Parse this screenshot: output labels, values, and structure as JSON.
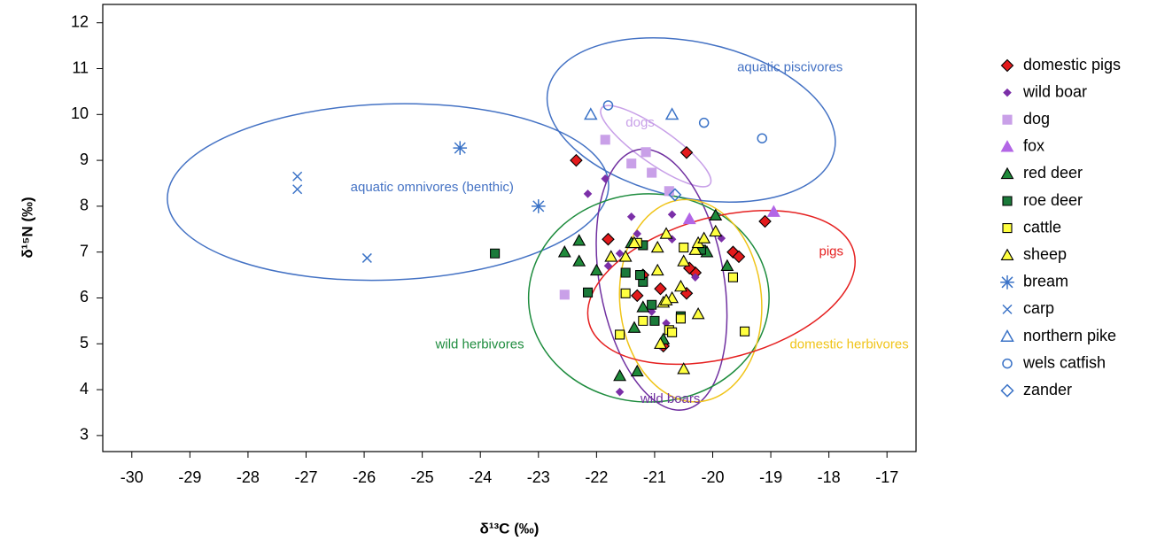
{
  "chart_data": {
    "type": "scatter",
    "x_label": "δ¹³C (‰)",
    "y_label": "δ¹⁵N (‰)",
    "xlim": [
      -30.5,
      -16.5
    ],
    "ylim": [
      2.65,
      12.4
    ],
    "xticks": [
      -30,
      -29,
      -28,
      -27,
      -26,
      -25,
      -24,
      -23,
      -22,
      -21,
      -20,
      -19,
      -18,
      -17
    ],
    "yticks": [
      3,
      4,
      5,
      6,
      7,
      8,
      9,
      10,
      11,
      12
    ],
    "series": [
      {
        "name": "domestic pigs",
        "color": "#e31a1c",
        "marker": "diamond",
        "outline": true,
        "x": [
          -22.35,
          -20.45,
          -21.8,
          -21.2,
          -21.3,
          -20.9,
          -20.85,
          -20.45,
          -20.3,
          -20.4,
          -19.65,
          -19.55,
          -19.1
        ],
        "y": [
          9.0,
          9.17,
          7.28,
          6.5,
          6.05,
          6.2,
          4.95,
          6.1,
          6.55,
          6.65,
          7.0,
          6.9,
          7.67
        ]
      },
      {
        "name": "wild boar",
        "color": "#7b2fa8",
        "marker": "small-diamond",
        "outline": false,
        "x": [
          -21.85,
          -22.15,
          -21.4,
          -20.7,
          -21.6,
          -21.3,
          -20.7,
          -21.8,
          -20.3,
          -20.8,
          -21.05,
          -19.85,
          -21.6,
          -20.9
        ],
        "y": [
          8.6,
          8.27,
          7.77,
          7.82,
          6.97,
          7.4,
          7.28,
          6.7,
          6.45,
          5.45,
          5.7,
          7.3,
          3.95,
          4.95
        ]
      },
      {
        "name": "dog",
        "color": "#c9a0e8",
        "marker": "square",
        "outline": false,
        "x": [
          -21.85,
          -21.4,
          -21.15,
          -21.05,
          -20.75,
          -22.55
        ],
        "y": [
          9.45,
          8.93,
          9.18,
          8.73,
          8.33,
          6.07
        ]
      },
      {
        "name": "fox",
        "color": "#b366e6",
        "marker": "triangle",
        "outline": false,
        "x": [
          -20.4,
          -18.95
        ],
        "y": [
          7.72,
          7.88
        ]
      },
      {
        "name": "red deer",
        "color": "#1f8a3a",
        "marker": "triangle",
        "outline": true,
        "x": [
          -22.55,
          -22.3,
          -22.3,
          -22.0,
          -21.4,
          -21.2,
          -21.35,
          -21.3,
          -21.6,
          -20.1,
          -19.95,
          -19.75,
          -20.85
        ],
        "y": [
          7.0,
          7.25,
          6.8,
          6.6,
          7.2,
          5.8,
          5.35,
          4.4,
          4.3,
          7.0,
          7.8,
          6.7,
          5.1
        ]
      },
      {
        "name": "roe deer",
        "color": "#1b7a3a",
        "marker": "square",
        "outline": true,
        "x": [
          -23.75,
          -22.15,
          -21.5,
          -21.2,
          -21.2,
          -21.0,
          -20.55,
          -20.2,
          -21.05,
          -21.25
        ],
        "y": [
          6.97,
          6.12,
          6.55,
          6.35,
          7.15,
          5.5,
          5.6,
          7.05,
          5.85,
          6.5
        ]
      },
      {
        "name": "cattle",
        "color": "#ffff40",
        "marker": "square",
        "outline": true,
        "x": [
          -21.5,
          -21.6,
          -21.2,
          -20.75,
          -20.7,
          -20.55,
          -20.5,
          -19.65,
          -19.45,
          -21.3
        ],
        "y": [
          6.1,
          5.2,
          5.5,
          5.3,
          5.25,
          5.55,
          7.1,
          6.45,
          5.27,
          7.2
        ]
      },
      {
        "name": "sheep",
        "color": "#ffff40",
        "marker": "triangle",
        "outline": true,
        "x": [
          -21.75,
          -21.5,
          -21.35,
          -20.95,
          -20.8,
          -20.95,
          -20.85,
          -20.7,
          -20.55,
          -20.3,
          -20.25,
          -20.15,
          -19.95,
          -20.5,
          -20.25,
          -20.9,
          -20.5,
          -20.8
        ],
        "y": [
          6.9,
          6.9,
          7.2,
          7.1,
          7.4,
          6.6,
          5.9,
          6.0,
          6.25,
          7.05,
          7.2,
          7.3,
          7.45,
          6.8,
          5.65,
          5.0,
          4.45,
          5.95
        ]
      },
      {
        "name": "bream",
        "color": "#3b73c7",
        "marker": "asterisk",
        "outline": false,
        "x": [
          -24.35,
          -23.0
        ],
        "y": [
          9.27,
          8.0
        ]
      },
      {
        "name": "carp",
        "color": "#3b73c7",
        "marker": "cross",
        "outline": false,
        "x": [
          -27.15,
          -27.15,
          -25.95
        ],
        "y": [
          8.65,
          8.37,
          6.87
        ]
      },
      {
        "name": "northern pike",
        "color": "#3b73c7",
        "marker": "open-triangle",
        "outline": false,
        "x": [
          -22.1,
          -20.7
        ],
        "y": [
          10.0,
          10.0
        ]
      },
      {
        "name": "wels catfish",
        "color": "#3b73c7",
        "marker": "open-circle",
        "outline": false,
        "x": [
          -21.8,
          -20.15,
          -19.15
        ],
        "y": [
          10.2,
          9.82,
          9.48
        ]
      },
      {
        "name": "zander",
        "color": "#3b73c7",
        "marker": "open-diamond",
        "outline": false,
        "x": [
          -20.65
        ],
        "y": [
          8.25
        ]
      }
    ],
    "ellipses": [
      {
        "label": "aquatic omnivores (benthic)",
        "color": "#4472c4",
        "cx": -25.59,
        "cy": 8.31,
        "rx": 3.8,
        "ry": 1.92,
        "angle": -2,
        "label_x": -24.83,
        "label_y": 8.4
      },
      {
        "label": "aquatic piscivores",
        "color": "#4472c4",
        "cx": -20.37,
        "cy": 9.88,
        "rx": 2.52,
        "ry": 1.7,
        "angle": 12,
        "label_x": -18.67,
        "label_y": 11.02
      },
      {
        "label": "dogs",
        "color": "#c8a0e8",
        "cx": -20.98,
        "cy": 9.31,
        "rx": 1.14,
        "ry": 0.38,
        "angle": 35,
        "label_x": -21.25,
        "label_y": 9.81
      },
      {
        "label": "wild boars",
        "color": "#7030a0",
        "cx": -20.88,
        "cy": 6.4,
        "rx": 1.07,
        "ry": 2.88,
        "angle": -10,
        "label_x": -20.73,
        "label_y": 3.79
      },
      {
        "label": "wild herbivores",
        "color": "#1e8c3e",
        "cx": -21.1,
        "cy": 6.0,
        "rx": 2.07,
        "ry": 2.27,
        "angle": 0,
        "label_x": -24.01,
        "label_y": 4.98
      },
      {
        "label": "domestic herbivores",
        "color": "#f0c419",
        "cx": -20.38,
        "cy": 5.94,
        "rx": 1.22,
        "ry": 2.21,
        "angle": -5,
        "label_x": -17.65,
        "label_y": 4.98
      },
      {
        "label": "pigs",
        "color": "#e52020",
        "cx": -19.85,
        "cy": 6.23,
        "rx": 2.36,
        "ry": 1.54,
        "angle": -15,
        "label_x": -17.96,
        "label_y": 7.0
      }
    ]
  }
}
